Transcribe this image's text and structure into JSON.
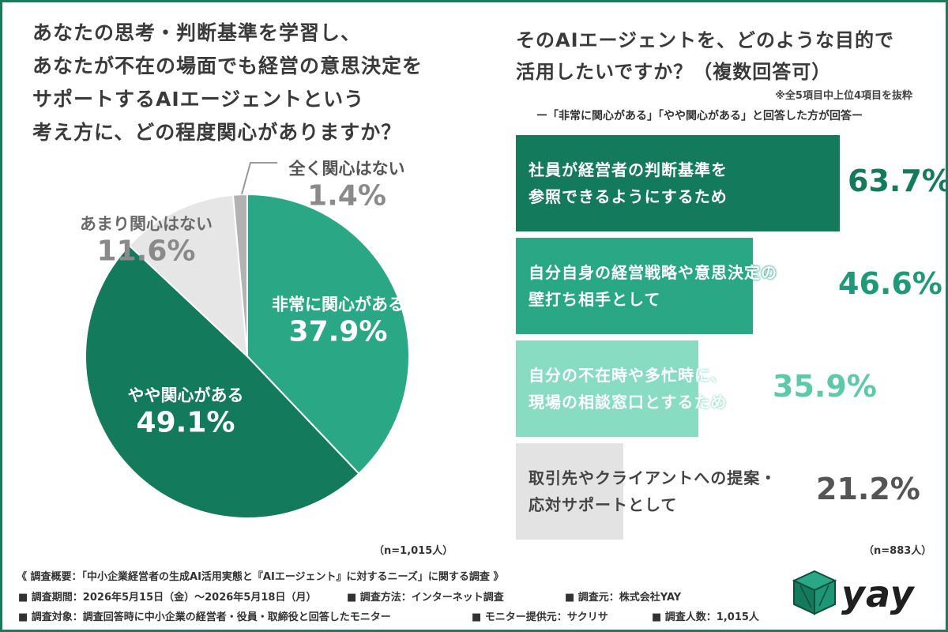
{
  "left": {
    "question_lines": [
      "あなたの思考・判断基準を学習し、",
      "あなたが不在の場面でも経営の意思決定を",
      "サポートするAIエージェントという",
      "考え方に、どの程度関心がありますか？"
    ],
    "n": "（n=1,015人）"
  },
  "right": {
    "question_lines": [
      "そのAIエージェントを、どのような目的で",
      "活用したいですか？（複数回答可）"
    ],
    "note": "※全5項目中上位4項目を抜粋",
    "subquestion": "ー「非常に関心がある」「やや関心がある」と回答した方が回答ー",
    "n": "（n=883人）"
  },
  "chart_data": [
    {
      "type": "pie",
      "slices": [
        {
          "label": "非常に関心がある",
          "value": 37.9,
          "value_label": "37.9%",
          "color": "#2aa886"
        },
        {
          "label": "やや関心がある",
          "value": 49.1,
          "value_label": "49.1%",
          "color": "#137a5c"
        },
        {
          "label": "あまり関心はない",
          "value": 11.6,
          "value_label": "11.6%",
          "color": "#e6e6e6"
        },
        {
          "label": "全く関心はない",
          "value": 1.4,
          "value_label": "1.4%",
          "color": "#b2b2b2"
        }
      ]
    },
    {
      "type": "bar",
      "orientation": "horizontal",
      "xlim": [
        0,
        63.7
      ],
      "bars": [
        {
          "label_lines": [
            "社員が経営者の判断基準を",
            "参照できるようにするため"
          ],
          "value": 63.7,
          "value_label": "63.7%",
          "color": "#137a5c",
          "value_color": "#137a5c"
        },
        {
          "label_lines": [
            "自分自身の経営戦略や意思決定の",
            "壁打ち相手として"
          ],
          "value": 46.6,
          "value_label": "46.6%",
          "color": "#2aa886",
          "value_color": "#1f9a78"
        },
        {
          "label_lines": [
            "自分の不在時や多忙時に、",
            "現場の相談窓口とするため"
          ],
          "value": 35.9,
          "value_label": "35.9%",
          "color": "#88dcc2",
          "value_color": "#5ccaa8"
        },
        {
          "label_lines": [
            "取引先やクライアントへの提案・",
            "応対サポートとして"
          ],
          "value": 21.2,
          "value_label": "21.2%",
          "color": "#e3e3e3",
          "value_color": "#555555"
        }
      ]
    }
  ],
  "footer": {
    "line1": "《 調査概要：「中小企業経営者の生成AI活用実態と『AIエージェント』に対するニーズ」に関する調査 》",
    "items": [
      [
        "■ 調査期間：2026年5月15日（金）〜2026年5月18日（月）",
        "■ 調査方法：インターネット調査",
        "■ 調査元：株式会社YAY"
      ],
      [
        "■ 調査対象：調査回答時に中小企業の経営者・役員・取締役と回答したモニター",
        "■ モニター提供元：サクリサ",
        "■ 調査人数：1,015人"
      ]
    ]
  },
  "logo": {
    "text": "yay"
  }
}
